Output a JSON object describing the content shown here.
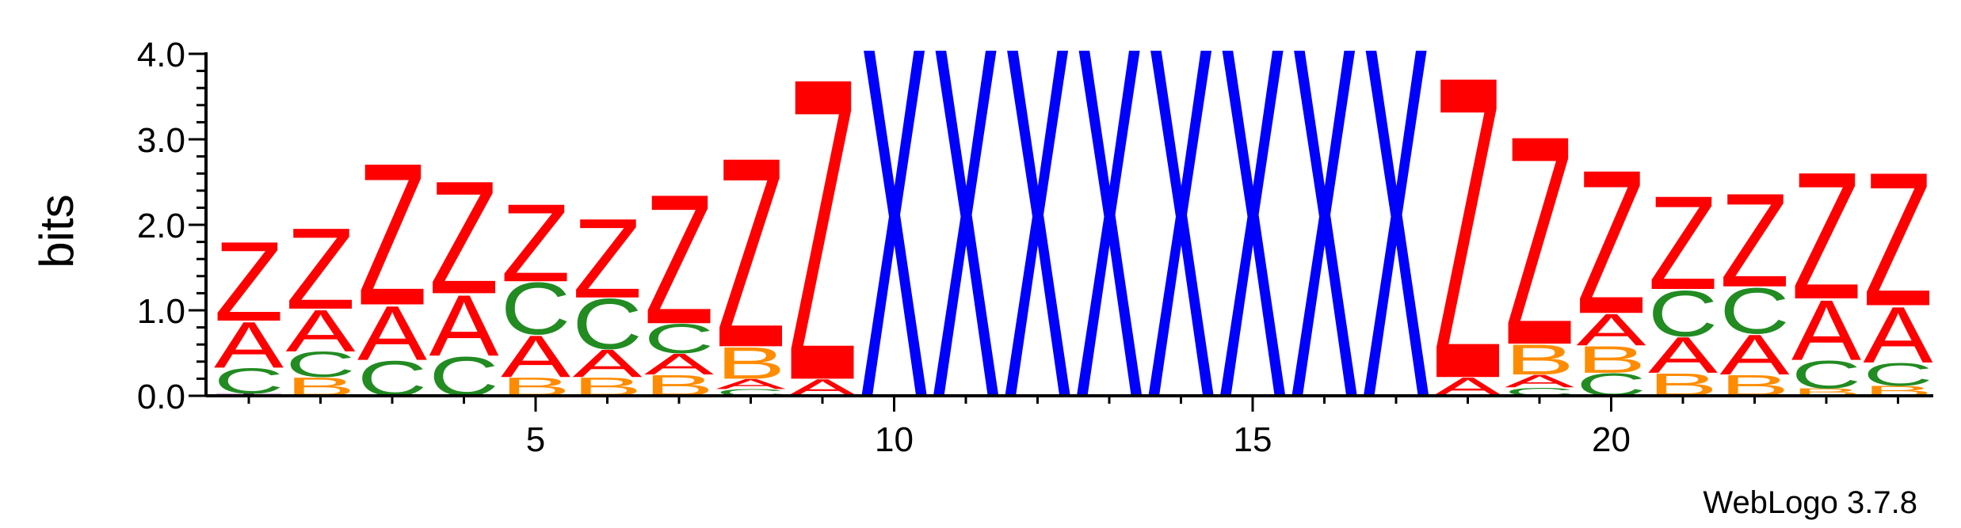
{
  "chart_data": {
    "type": "sequence-logo",
    "ylabel": "bits",
    "ylim": [
      0,
      4.0
    ],
    "y_ticks": [
      "0.0",
      "1.0",
      "2.0",
      "3.0",
      "4.0"
    ],
    "x_range": [
      1,
      24
    ],
    "x_ticks": [
      "5",
      "10",
      "15",
      "20"
    ],
    "colors": {
      "Z": "#ff0000",
      "A": "#ff0000",
      "X": "#0000ff",
      "C": "#228b22",
      "B": "#ff8c00",
      "T": "#800080"
    },
    "positions": [
      {
        "pos": 1,
        "stack": [
          [
            "T",
            0.03
          ],
          [
            "C",
            0.3
          ],
          [
            "A",
            0.55
          ],
          [
            "Z",
            0.95
          ]
        ]
      },
      {
        "pos": 2,
        "stack": [
          [
            "B",
            0.22
          ],
          [
            "C",
            0.3
          ],
          [
            "A",
            0.5
          ],
          [
            "Z",
            0.97
          ]
        ]
      },
      {
        "pos": 3,
        "stack": [
          [
            "C",
            0.42
          ],
          [
            "A",
            0.65
          ],
          [
            "Z",
            1.7
          ]
        ]
      },
      {
        "pos": 4,
        "stack": [
          [
            "C",
            0.47
          ],
          [
            "A",
            0.73
          ],
          [
            "Z",
            1.35
          ]
        ]
      },
      {
        "pos": 5,
        "stack": [
          [
            "B",
            0.22
          ],
          [
            "A",
            0.5
          ],
          [
            "C",
            0.62
          ],
          [
            "Z",
            0.93
          ]
        ]
      },
      {
        "pos": 6,
        "stack": [
          [
            "B",
            0.22
          ],
          [
            "A",
            0.33
          ],
          [
            "C",
            0.6
          ],
          [
            "Z",
            0.95
          ]
        ]
      },
      {
        "pos": 7,
        "stack": [
          [
            "B",
            0.25
          ],
          [
            "A",
            0.25
          ],
          [
            "C",
            0.35
          ],
          [
            "Z",
            1.55
          ]
        ]
      },
      {
        "pos": 8,
        "stack": [
          [
            "C",
            0.08
          ],
          [
            "A",
            0.12
          ],
          [
            "B",
            0.38
          ],
          [
            "Z",
            2.27
          ]
        ]
      },
      {
        "pos": 9,
        "stack": [
          [
            "A",
            0.2
          ],
          [
            "Z",
            3.62
          ]
        ]
      },
      {
        "pos": 10,
        "stack": [
          [
            "X",
            4.2
          ]
        ]
      },
      {
        "pos": 11,
        "stack": [
          [
            "X",
            4.2
          ]
        ]
      },
      {
        "pos": 12,
        "stack": [
          [
            "X",
            4.2
          ]
        ]
      },
      {
        "pos": 13,
        "stack": [
          [
            "X",
            4.2
          ]
        ]
      },
      {
        "pos": 14,
        "stack": [
          [
            "X",
            4.2
          ]
        ]
      },
      {
        "pos": 15,
        "stack": [
          [
            "X",
            4.2
          ]
        ]
      },
      {
        "pos": 16,
        "stack": [
          [
            "X",
            4.2
          ]
        ]
      },
      {
        "pos": 17,
        "stack": [
          [
            "X",
            4.2
          ]
        ]
      },
      {
        "pos": 18,
        "stack": [
          [
            "A",
            0.22
          ],
          [
            "Z",
            3.62
          ]
        ]
      },
      {
        "pos": 19,
        "stack": [
          [
            "C",
            0.1
          ],
          [
            "A",
            0.15
          ],
          [
            "B",
            0.36
          ],
          [
            "Z",
            2.5
          ]
        ]
      },
      {
        "pos": 20,
        "stack": [
          [
            "C",
            0.27
          ],
          [
            "B",
            0.32
          ],
          [
            "A",
            0.38
          ],
          [
            "Z",
            1.72
          ]
        ]
      },
      {
        "pos": 21,
        "stack": [
          [
            "B",
            0.27
          ],
          [
            "A",
            0.43
          ],
          [
            "C",
            0.55
          ],
          [
            "Z",
            1.12
          ]
        ]
      },
      {
        "pos": 22,
        "stack": [
          [
            "B",
            0.25
          ],
          [
            "A",
            0.48
          ],
          [
            "C",
            0.55
          ],
          [
            "Z",
            1.12
          ]
        ]
      },
      {
        "pos": 23,
        "stack": [
          [
            "B",
            0.09
          ],
          [
            "C",
            0.33
          ],
          [
            "A",
            0.72
          ],
          [
            "Z",
            1.52
          ]
        ]
      },
      {
        "pos": 24,
        "stack": [
          [
            "B",
            0.12
          ],
          [
            "C",
            0.27
          ],
          [
            "A",
            0.67
          ],
          [
            "Z",
            1.6
          ]
        ]
      }
    ]
  },
  "credit": "WebLogo 3.7.8"
}
